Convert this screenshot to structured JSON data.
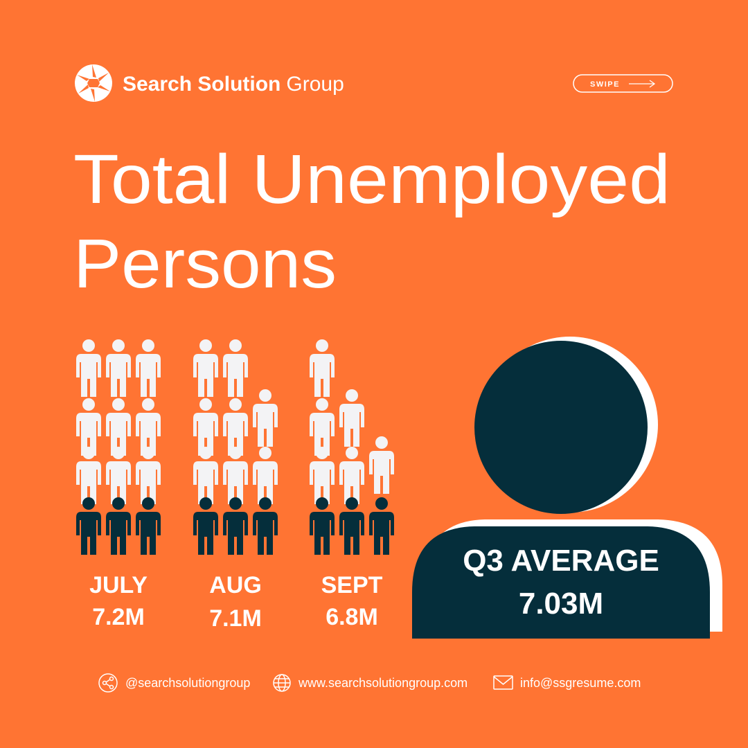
{
  "brand": {
    "bold": "Search Solution",
    "regular": "Group"
  },
  "swipe": "SWIPE",
  "title": {
    "line1": "Total Unemployed",
    "line2": "Persons"
  },
  "months": [
    {
      "label": "JULY",
      "value": "7.2M"
    },
    {
      "label": "AUG",
      "value": "7.1M"
    },
    {
      "label": "SEPT",
      "value": "6.8M"
    }
  ],
  "average": {
    "label": "Q3 AVERAGE",
    "value": "7.03M"
  },
  "footer": {
    "social": "@searchsolutiongroup",
    "website": "www.searchsolutiongroup.com",
    "email": "info@ssgresume.com"
  }
}
